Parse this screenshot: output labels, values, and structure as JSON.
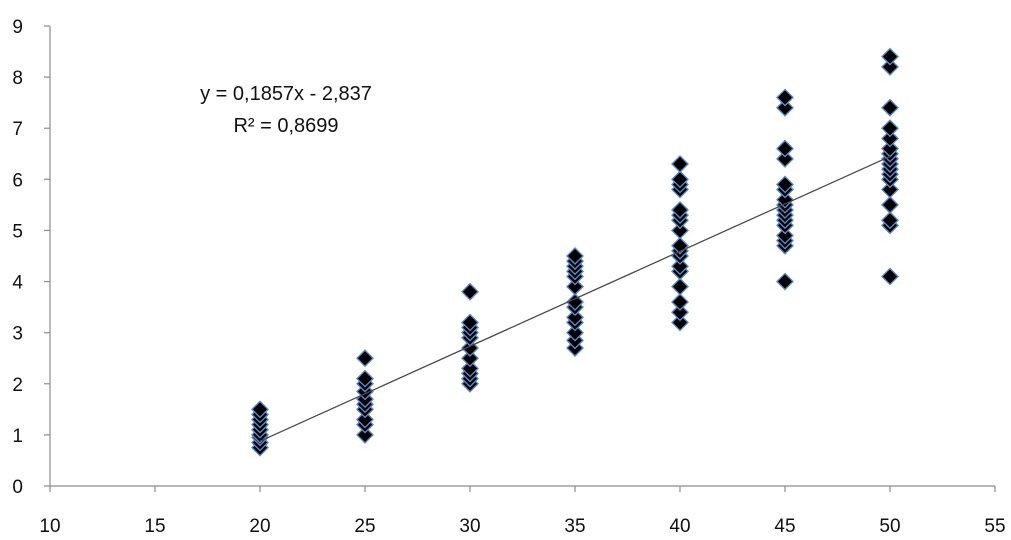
{
  "chart_data": {
    "type": "scatter",
    "title": "",
    "xlabel": "",
    "ylabel": "",
    "xlim": [
      10,
      55
    ],
    "ylim": [
      0,
      9
    ],
    "x_ticks": [
      "10",
      "15",
      "20",
      "25",
      "30",
      "35",
      "40",
      "45",
      "50",
      "55"
    ],
    "y_ticks": [
      "0",
      "1",
      "2",
      "3",
      "4",
      "5",
      "6",
      "7",
      "8",
      "9"
    ],
    "grid": false,
    "legend": "none",
    "marker": "diamond",
    "colors": {
      "marker_fill": "#000000",
      "marker_edge": "#5b86c5",
      "trendline": "#4a4a4a",
      "axis": "#8c8c8c"
    },
    "trendline": {
      "slope": 0.1857,
      "intercept": -2.837,
      "x_range": [
        20,
        50
      ],
      "equation_text": "y = 0,1857x - 2,837",
      "r2_text": "R² = 0,8699"
    },
    "points": [
      {
        "x": 20,
        "y": 0.75
      },
      {
        "x": 20,
        "y": 0.85
      },
      {
        "x": 20,
        "y": 0.95
      },
      {
        "x": 20,
        "y": 1.0
      },
      {
        "x": 20,
        "y": 1.1
      },
      {
        "x": 20,
        "y": 1.2
      },
      {
        "x": 20,
        "y": 1.3
      },
      {
        "x": 20,
        "y": 1.4
      },
      {
        "x": 20,
        "y": 1.5
      },
      {
        "x": 25,
        "y": 1.0
      },
      {
        "x": 25,
        "y": 1.2
      },
      {
        "x": 25,
        "y": 1.3
      },
      {
        "x": 25,
        "y": 1.5
      },
      {
        "x": 25,
        "y": 1.6
      },
      {
        "x": 25,
        "y": 1.7
      },
      {
        "x": 25,
        "y": 1.85
      },
      {
        "x": 25,
        "y": 2.0
      },
      {
        "x": 25,
        "y": 2.1
      },
      {
        "x": 25,
        "y": 2.5
      },
      {
        "x": 30,
        "y": 2.0
      },
      {
        "x": 30,
        "y": 2.1
      },
      {
        "x": 30,
        "y": 2.2
      },
      {
        "x": 30,
        "y": 2.3
      },
      {
        "x": 30,
        "y": 2.5
      },
      {
        "x": 30,
        "y": 2.7
      },
      {
        "x": 30,
        "y": 2.9
      },
      {
        "x": 30,
        "y": 3.0
      },
      {
        "x": 30,
        "y": 3.1
      },
      {
        "x": 30,
        "y": 3.2
      },
      {
        "x": 30,
        "y": 3.8
      },
      {
        "x": 35,
        "y": 2.7
      },
      {
        "x": 35,
        "y": 2.85
      },
      {
        "x": 35,
        "y": 3.0
      },
      {
        "x": 35,
        "y": 3.2
      },
      {
        "x": 35,
        "y": 3.3
      },
      {
        "x": 35,
        "y": 3.5
      },
      {
        "x": 35,
        "y": 3.6
      },
      {
        "x": 35,
        "y": 3.9
      },
      {
        "x": 35,
        "y": 4.1
      },
      {
        "x": 35,
        "y": 4.2
      },
      {
        "x": 35,
        "y": 4.3
      },
      {
        "x": 35,
        "y": 4.4
      },
      {
        "x": 35,
        "y": 4.5
      },
      {
        "x": 40,
        "y": 3.2
      },
      {
        "x": 40,
        "y": 3.4
      },
      {
        "x": 40,
        "y": 3.6
      },
      {
        "x": 40,
        "y": 3.9
      },
      {
        "x": 40,
        "y": 4.2
      },
      {
        "x": 40,
        "y": 4.3
      },
      {
        "x": 40,
        "y": 4.5
      },
      {
        "x": 40,
        "y": 4.6
      },
      {
        "x": 40,
        "y": 4.7
      },
      {
        "x": 40,
        "y": 5.0
      },
      {
        "x": 40,
        "y": 5.2
      },
      {
        "x": 40,
        "y": 5.3
      },
      {
        "x": 40,
        "y": 5.4
      },
      {
        "x": 40,
        "y": 5.8
      },
      {
        "x": 40,
        "y": 5.9
      },
      {
        "x": 40,
        "y": 6.0
      },
      {
        "x": 40,
        "y": 6.3
      },
      {
        "x": 45,
        "y": 4.0
      },
      {
        "x": 45,
        "y": 4.7
      },
      {
        "x": 45,
        "y": 4.8
      },
      {
        "x": 45,
        "y": 4.9
      },
      {
        "x": 45,
        "y": 5.1
      },
      {
        "x": 45,
        "y": 5.2
      },
      {
        "x": 45,
        "y": 5.3
      },
      {
        "x": 45,
        "y": 5.4
      },
      {
        "x": 45,
        "y": 5.5
      },
      {
        "x": 45,
        "y": 5.6
      },
      {
        "x": 45,
        "y": 5.8
      },
      {
        "x": 45,
        "y": 5.9
      },
      {
        "x": 45,
        "y": 6.4
      },
      {
        "x": 45,
        "y": 6.6
      },
      {
        "x": 45,
        "y": 7.4
      },
      {
        "x": 45,
        "y": 7.6
      },
      {
        "x": 50,
        "y": 4.1
      },
      {
        "x": 50,
        "y": 5.1
      },
      {
        "x": 50,
        "y": 5.2
      },
      {
        "x": 50,
        "y": 5.5
      },
      {
        "x": 50,
        "y": 5.8
      },
      {
        "x": 50,
        "y": 6.0
      },
      {
        "x": 50,
        "y": 6.1
      },
      {
        "x": 50,
        "y": 6.2
      },
      {
        "x": 50,
        "y": 6.3
      },
      {
        "x": 50,
        "y": 6.4
      },
      {
        "x": 50,
        "y": 6.5
      },
      {
        "x": 50,
        "y": 6.6
      },
      {
        "x": 50,
        "y": 6.8
      },
      {
        "x": 50,
        "y": 7.0
      },
      {
        "x": 50,
        "y": 7.4
      },
      {
        "x": 50,
        "y": 8.2
      },
      {
        "x": 50,
        "y": 8.4
      }
    ]
  }
}
